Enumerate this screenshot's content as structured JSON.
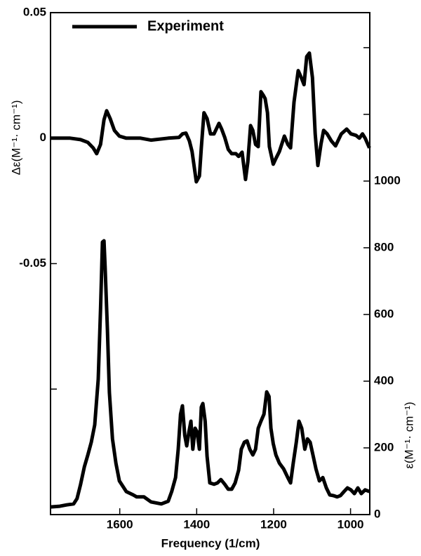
{
  "chart_data": {
    "type": "line",
    "xlabel": "Frequency (1/cm)",
    "ylabel": "Δε(M⁻¹· cm⁻¹)",
    "y2label": "ε(M⁻¹· cm⁻¹)",
    "xlim": [
      1780,
      950
    ],
    "xticks": [
      1600,
      1400,
      1200,
      1000
    ],
    "ylim": [
      -0.15,
      0.05
    ],
    "yticks": [
      0.05,
      0,
      -0.05,
      {
        "value": -0.1,
        "label": null
      }
    ],
    "y2lim": [
      0,
      1505
    ],
    "y2ticks": [
      0,
      200,
      400,
      600,
      800,
      1000,
      {
        "value": 1200,
        "label": null
      },
      {
        "value": 1400,
        "label": null
      }
    ],
    "legend": "upper left",
    "series": [
      {
        "name": "Experiment",
        "color": "#000000",
        "x": [
          1780,
          1729,
          1702,
          1683,
          1669,
          1660,
          1650,
          1641,
          1634,
          1625,
          1614,
          1601,
          1583,
          1546,
          1519,
          1474,
          1446,
          1437,
          1428,
          1419,
          1412,
          1401,
          1393,
          1388,
          1381,
          1373,
          1364,
          1355,
          1342,
          1335,
          1327,
          1318,
          1309,
          1298,
          1291,
          1282,
          1273,
          1267,
          1260,
          1254,
          1247,
          1240,
          1233,
          1227,
          1222,
          1216,
          1211,
          1201,
          1194,
          1185,
          1172,
          1163,
          1156,
          1147,
          1136,
          1128,
          1121,
          1114,
          1107,
          1099,
          1092,
          1085,
          1077,
          1070,
          1061,
          1050,
          1039,
          1024,
          1010,
          999,
          986,
          977,
          969,
          962,
          951
        ],
        "values": [
          0,
          0,
          -0.0006,
          -0.0017,
          -0.0039,
          -0.0062,
          -0.0025,
          0.0073,
          0.0109,
          0.0078,
          0.0031,
          0.0008,
          0,
          0,
          -0.0008,
          0,
          0.0003,
          0.0017,
          0.002,
          -0.0011,
          -0.0053,
          -0.0174,
          -0.0151,
          -0.0039,
          0.0101,
          0.0078,
          0.0017,
          0.0017,
          0.0059,
          0.0036,
          0.0003,
          -0.0045,
          -0.0062,
          -0.0062,
          -0.0073,
          -0.0056,
          -0.0165,
          -0.0095,
          0.005,
          0.0031,
          -0.0025,
          -0.0034,
          0.0185,
          0.0171,
          0.0157,
          0.0101,
          -0.0034,
          -0.0104,
          -0.0081,
          -0.0053,
          0.0008,
          -0.0025,
          -0.0039,
          0.0143,
          0.0269,
          0.0241,
          0.0213,
          0.0325,
          0.0339,
          0.0241,
          0.0017,
          -0.0109,
          -0.0025,
          0.0031,
          0.0017,
          -0.0011,
          -0.0031,
          0.0017,
          0.0036,
          0.0017,
          0.0011,
          0,
          0.0017,
          0,
          -0.0039
        ]
      },
      {
        "color": "#000000",
        "axis": "y2",
        "x": [
          1780,
          1756,
          1738,
          1720,
          1711,
          1702,
          1692,
          1683,
          1674,
          1665,
          1656,
          1650,
          1645,
          1641,
          1638,
          1632,
          1627,
          1619,
          1610,
          1601,
          1583,
          1565,
          1556,
          1537,
          1519,
          1492,
          1474,
          1465,
          1455,
          1448,
          1442,
          1437,
          1431,
          1426,
          1420,
          1415,
          1410,
          1404,
          1399,
          1393,
          1388,
          1384,
          1378,
          1373,
          1366,
          1355,
          1346,
          1337,
          1327,
          1318,
          1309,
          1300,
          1291,
          1284,
          1276,
          1269,
          1262,
          1254,
          1247,
          1240,
          1233,
          1225,
          1218,
          1212,
          1207,
          1201,
          1194,
          1185,
          1174,
          1163,
          1156,
          1149,
          1141,
          1134,
          1127,
          1119,
          1112,
          1105,
          1097,
          1090,
          1081,
          1072,
          1063,
          1054,
          1045,
          1035,
          1026,
          1017,
          1008,
          999,
          990,
          981,
          972,
          962,
          951
        ],
        "values": [
          23,
          25,
          29,
          32,
          48,
          90,
          143,
          179,
          217,
          269,
          406,
          617,
          817,
          821,
          743,
          554,
          366,
          227,
          154,
          101,
          69,
          59,
          53,
          53,
          38,
          32,
          40,
          69,
          111,
          196,
          301,
          326,
          238,
          206,
          248,
          280,
          196,
          259,
          248,
          196,
          322,
          333,
          280,
          175,
          95,
          91,
          95,
          105,
          91,
          76,
          76,
          95,
          133,
          196,
          217,
          221,
          196,
          179,
          196,
          259,
          280,
          301,
          368,
          354,
          259,
          213,
          179,
          154,
          137,
          111,
          95,
          154,
          217,
          280,
          259,
          196,
          227,
          217,
          175,
          137,
          101,
          111,
          80,
          59,
          57,
          53,
          57,
          69,
          80,
          74,
          63,
          80,
          63,
          74,
          69
        ]
      }
    ]
  }
}
